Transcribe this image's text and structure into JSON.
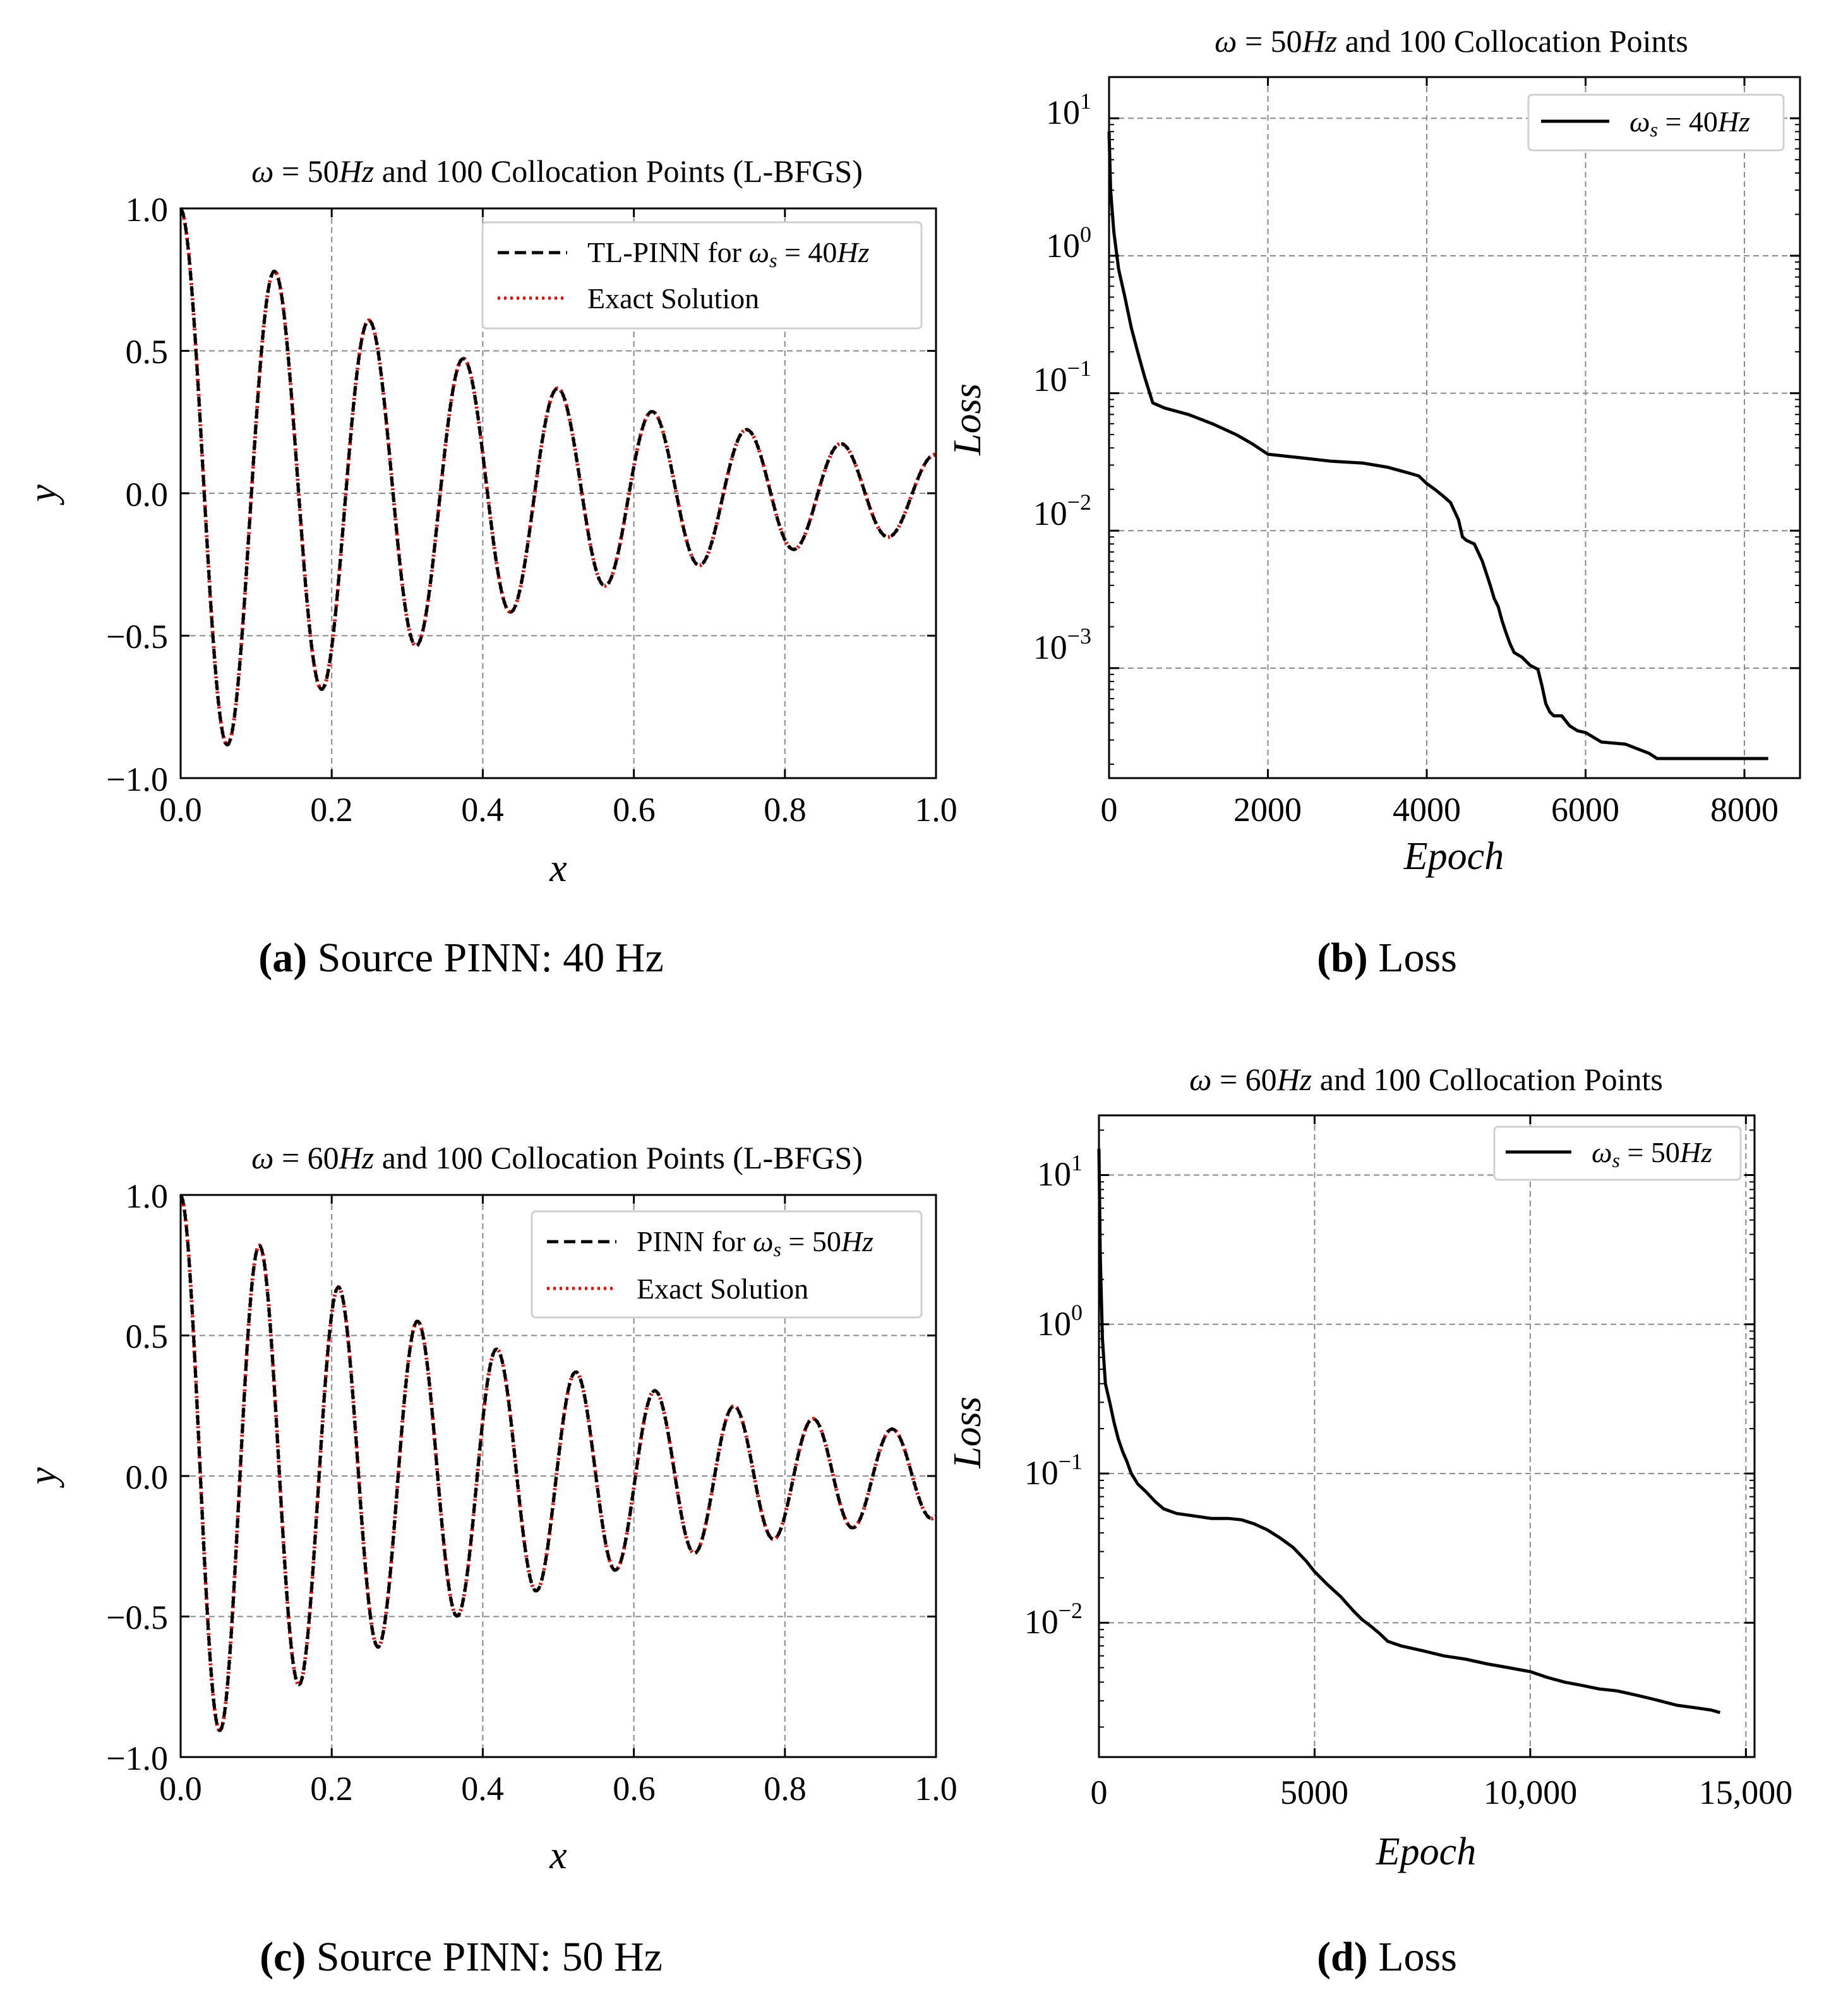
{
  "chart_data": [
    {
      "id": "a",
      "type": "line",
      "title": "ω = 50Hz and 100 Collocation Points (L-BFGS)",
      "xlabel": "x",
      "ylabel": "y",
      "xlim": [
        0.0,
        1.0
      ],
      "ylim": [
        -1.0,
        1.0
      ],
      "xticks": [
        "0.0",
        "0.2",
        "0.4",
        "0.6",
        "0.8",
        "1.0"
      ],
      "yticks": [
        "1.0",
        "0.5",
        "0.0",
        "−0.5",
        "−1.0"
      ],
      "grid": true,
      "legend_position": "top-right",
      "function": {
        "form": "exp(-a*x)*cos(w*x)",
        "a": 2.0,
        "w": 50.27
      },
      "series": [
        {
          "name": "TL-PINN for ω_s = 40Hz",
          "style": "dashed",
          "color": "#000000"
        },
        {
          "name": "Exact Solution",
          "style": "dotted",
          "color": "#ff0000"
        }
      ],
      "caption_label": "(a)",
      "caption_text": " Source PINN: 40 Hz"
    },
    {
      "id": "b",
      "type": "line",
      "title": "ω = 50Hz and 100 Collocation Points",
      "xlabel": "Epoch",
      "ylabel": "Loss",
      "yscale": "log",
      "xlim": [
        0,
        8700
      ],
      "ylim_exp": [
        -3.8,
        1.3
      ],
      "xticks": [
        "0",
        "2000",
        "4000",
        "6000",
        "8000"
      ],
      "yticks": [
        "10^1",
        "10^0",
        "10^-1",
        "10^-2",
        "10^-3"
      ],
      "grid": true,
      "legend_position": "top-right",
      "series": [
        {
          "name": "ω_s = 40Hz",
          "color": "#000000",
          "epochs": [
            0,
            20,
            60,
            120,
            200,
            280,
            360,
            450,
            550,
            700,
            1000,
            1300,
            1600,
            1800,
            2000,
            2400,
            2800,
            3200,
            3500,
            3700,
            3800,
            3900,
            4000,
            4100,
            4200,
            4300,
            4400,
            4450,
            4500,
            4600,
            4700,
            4800,
            4850,
            4900,
            4950,
            5000,
            5050,
            5100,
            5200,
            5300,
            5400,
            5450,
            5500,
            5550,
            5600,
            5700,
            5800,
            5900,
            6000,
            6200,
            6500,
            6800,
            6900,
            7200,
            7600,
            8000,
            8300
          ],
          "losses": [
            8.0,
            3.0,
            1.5,
            0.8,
            0.5,
            0.3,
            0.2,
            0.13,
            0.085,
            0.078,
            0.07,
            0.06,
            0.05,
            0.043,
            0.036,
            0.034,
            0.032,
            0.031,
            0.029,
            0.027,
            0.026,
            0.025,
            0.022,
            0.02,
            0.018,
            0.016,
            0.012,
            0.009,
            0.0085,
            0.008,
            0.006,
            0.004,
            0.0032,
            0.0028,
            0.0022,
            0.0018,
            0.0015,
            0.0013,
            0.0012,
            0.00105,
            0.00098,
            0.00075,
            0.00055,
            0.00048,
            0.00045,
            0.00045,
            0.00038,
            0.00035,
            0.00034,
            0.00029,
            0.00028,
            0.00024,
            0.00022,
            0.00022,
            0.00022,
            0.00022,
            0.00022
          ]
        }
      ],
      "caption_label": "(b)",
      "caption_text": " Loss"
    },
    {
      "id": "c",
      "type": "line",
      "title": "ω = 60Hz and 100 Collocation Points (L-BFGS)",
      "xlabel": "x",
      "ylabel": "y",
      "xlim": [
        0.0,
        1.0
      ],
      "ylim": [
        -1.0,
        1.0
      ],
      "xticks": [
        "0.0",
        "0.2",
        "0.4",
        "0.6",
        "0.8",
        "1.0"
      ],
      "yticks": [
        "1.0",
        "0.5",
        "0.0",
        "−0.5",
        "−1.0"
      ],
      "grid": true,
      "legend_position": "top-right",
      "function": {
        "form": "exp(-a*x)*cos(w*x)",
        "a": 1.9,
        "w": 60.0
      },
      "series": [
        {
          "name": "PINN for ω_s = 50Hz",
          "style": "dashed",
          "color": "#000000"
        },
        {
          "name": "Exact Solution",
          "style": "dotted",
          "color": "#ff0000"
        }
      ],
      "caption_label": "(c)",
      "caption_text": " Source PINN: 50 Hz"
    },
    {
      "id": "d",
      "type": "line",
      "title": "ω = 60Hz and 100 Collocation Points",
      "xlabel": "Epoch",
      "ylabel": "Loss",
      "yscale": "log",
      "xlim": [
        0,
        15200
      ],
      "ylim_exp": [
        -2.9,
        1.4
      ],
      "xticks": [
        "0",
        "5000",
        "10,000",
        "15,000"
      ],
      "yticks": [
        "10^1",
        "10^0",
        "10^-1",
        "10^-2"
      ],
      "grid": true,
      "legend_position": "top-right",
      "series": [
        {
          "name": "ω_s = 50Hz",
          "color": "#000000",
          "epochs": [
            0,
            30,
            80,
            150,
            250,
            350,
            450,
            550,
            650,
            750,
            900,
            1100,
            1300,
            1500,
            1800,
            2200,
            2600,
            3000,
            3300,
            3600,
            3900,
            4200,
            4500,
            4800,
            5000,
            5300,
            5600,
            5900,
            6100,
            6300,
            6500,
            6700,
            7000,
            7500,
            8000,
            8500,
            9000,
            9500,
            10000,
            10400,
            10800,
            11200,
            11600,
            12000,
            12400,
            12800,
            13000,
            13400,
            13800,
            14200,
            14400
          ],
          "losses": [
            15.0,
            3.0,
            0.8,
            0.4,
            0.3,
            0.22,
            0.17,
            0.14,
            0.12,
            0.1,
            0.085,
            0.075,
            0.065,
            0.058,
            0.054,
            0.052,
            0.05,
            0.05,
            0.049,
            0.046,
            0.042,
            0.037,
            0.032,
            0.026,
            0.022,
            0.018,
            0.015,
            0.012,
            0.0105,
            0.0095,
            0.0085,
            0.0075,
            0.007,
            0.0065,
            0.006,
            0.0057,
            0.0053,
            0.005,
            0.0047,
            0.0043,
            0.004,
            0.0038,
            0.0036,
            0.0035,
            0.0033,
            0.0031,
            0.003,
            0.0028,
            0.0027,
            0.0026,
            0.0025
          ]
        }
      ],
      "caption_label": "(d)",
      "caption_text": " Loss"
    }
  ]
}
